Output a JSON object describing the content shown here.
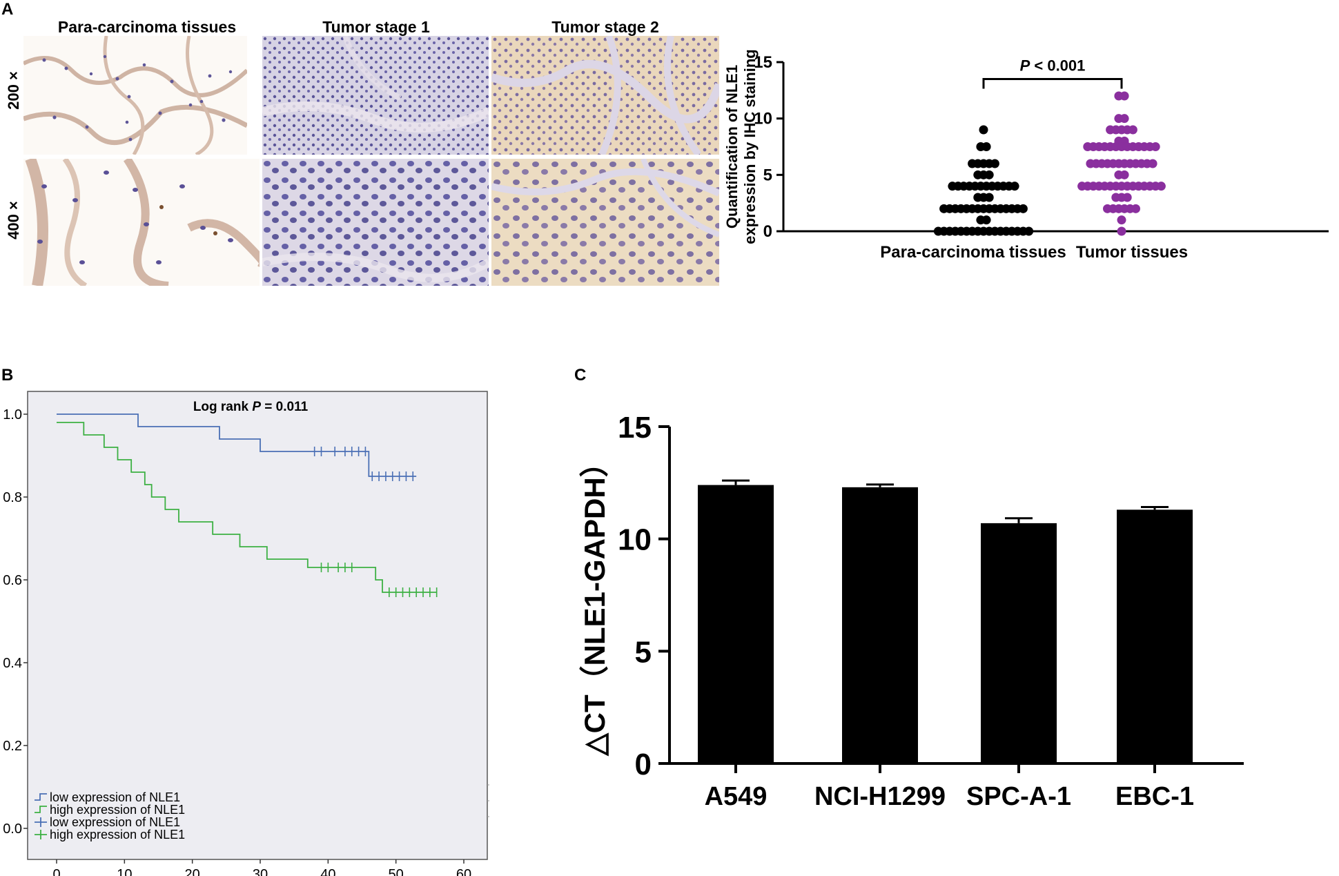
{
  "panel_a": {
    "letter": "A",
    "columns": [
      "Para-carcinoma tissues",
      "Tumor stage  1",
      "Tumor stage 2"
    ],
    "rows": [
      "200 ×",
      "400 ×"
    ]
  },
  "panel_b": {
    "letter": "B"
  },
  "panel_c": {
    "letter": "C"
  },
  "chart_data": [
    {
      "id": "panel-a-dotplot",
      "type": "scatter",
      "categories": [
        "Para-carcinoma tissues",
        "Tumor tissues"
      ],
      "ylabel": "Quantification of NLE1 expression by IHC staining",
      "ylim": [
        0,
        15
      ],
      "yticks": [
        0,
        5,
        10,
        15
      ],
      "annotation": {
        "prefix": "P",
        "text": " < 0.001"
      },
      "colors": {
        "Para-carcinoma tissues": "#000000",
        "Tumor tissues": "#8a2f9e"
      },
      "series": [
        {
          "category": "Para-carcinoma tissues",
          "groups": [
            {
              "y": 9,
              "n": 1
            },
            {
              "y": 7.5,
              "n": 2
            },
            {
              "y": 6,
              "n": 5
            },
            {
              "y": 5,
              "n": 3
            },
            {
              "y": 4,
              "n": 12
            },
            {
              "y": 3,
              "n": 3
            },
            {
              "y": 2,
              "n": 15
            },
            {
              "y": 1,
              "n": 2
            },
            {
              "y": 0,
              "n": 17
            }
          ]
        },
        {
          "category": "Tumor tissues",
          "groups": [
            {
              "y": 12,
              "n": 2
            },
            {
              "y": 10,
              "n": 2
            },
            {
              "y": 9,
              "n": 5
            },
            {
              "y": 8,
              "n": 2
            },
            {
              "y": 7.5,
              "n": 13
            },
            {
              "y": 6,
              "n": 12
            },
            {
              "y": 5,
              "n": 2
            },
            {
              "y": 4,
              "n": 15
            },
            {
              "y": 3,
              "n": 3
            },
            {
              "y": 2,
              "n": 6
            },
            {
              "y": 1,
              "n": 1
            },
            {
              "y": 0,
              "n": 1
            }
          ]
        }
      ]
    },
    {
      "id": "panel-b-km",
      "type": "line",
      "title": {
        "prefix": "Log rank ",
        "italic": "P",
        "suffix": " = 0.011"
      },
      "xlim": [
        0,
        60
      ],
      "ylim": [
        0,
        1
      ],
      "xticks": [
        0,
        10,
        20,
        30,
        40,
        50,
        60
      ],
      "yticks": [
        "0.0",
        "0.2",
        "0.4",
        "0.6",
        "0.8",
        "1.0"
      ],
      "legend": [
        "low expression of NLE1",
        "high expression of NLE1",
        "low expression of NLE1",
        "high expression of NLE1"
      ],
      "legend_position": "bottom-left",
      "colors": {
        "low": "#4a6fb5",
        "high": "#3cb043"
      },
      "series": [
        {
          "name": "low expression of NLE1",
          "steps": [
            [
              0,
              1.0
            ],
            [
              12,
              0.97
            ],
            [
              24,
              0.94
            ],
            [
              30,
              0.91
            ],
            [
              46,
              0.85
            ],
            [
              53,
              0.85
            ]
          ],
          "censored": [
            38,
            39,
            41,
            42.5,
            43.5,
            44.5,
            45.5,
            46.5,
            47.5,
            48.5,
            49.5,
            50.5,
            51.5,
            52.5
          ]
        },
        {
          "name": "high expression of NLE1",
          "steps": [
            [
              0,
              0.98
            ],
            [
              2,
              0.98
            ],
            [
              4,
              0.95
            ],
            [
              7,
              0.92
            ],
            [
              9,
              0.89
            ],
            [
              11,
              0.86
            ],
            [
              13,
              0.83
            ],
            [
              14,
              0.8
            ],
            [
              16,
              0.77
            ],
            [
              18,
              0.74
            ],
            [
              23,
              0.71
            ],
            [
              27,
              0.68
            ],
            [
              31,
              0.65
            ],
            [
              37,
              0.63
            ],
            [
              47,
              0.6
            ],
            [
              48,
              0.57
            ],
            [
              56,
              0.57
            ]
          ],
          "censored": [
            39,
            40,
            41.5,
            42.5,
            43.5,
            49,
            50,
            51,
            52,
            53,
            54,
            55,
            56
          ]
        }
      ]
    },
    {
      "id": "panel-c-bar",
      "type": "bar",
      "categories": [
        "A549",
        "NCI-H1299",
        "SPC-A-1",
        "EBC-1"
      ],
      "values": [
        12.4,
        12.3,
        10.7,
        11.3
      ],
      "errors": [
        0.2,
        0.12,
        0.22,
        0.12
      ],
      "ylabel": "△CT（NLE1-GAPDH）",
      "ylim": [
        0,
        15
      ],
      "yticks": [
        0,
        5,
        10,
        15
      ],
      "color": "#000000"
    }
  ]
}
